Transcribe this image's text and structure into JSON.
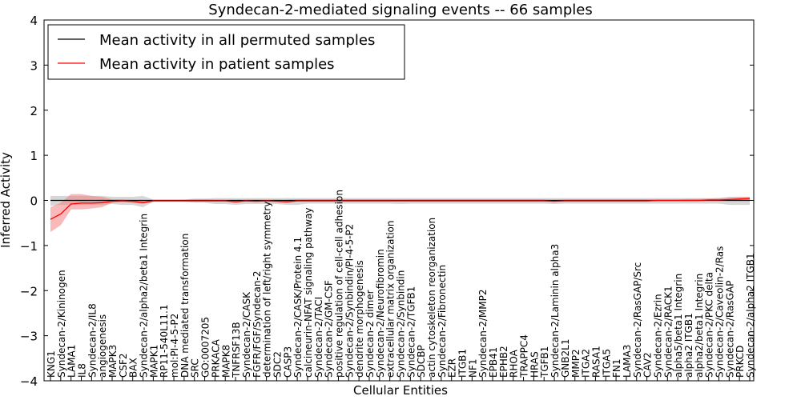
{
  "chart_data": {
    "type": "line",
    "title": "Syndecan-2-mediated signaling events -- 66 samples",
    "xlabel": "Cellular Entities",
    "ylabel": "Inferred Activity",
    "ylim": [
      -4,
      4
    ],
    "yticks": [
      -4,
      -3,
      -2,
      -1,
      0,
      1,
      2,
      3,
      4
    ],
    "ytick_labels": [
      "−4",
      "−3",
      "−2",
      "−1",
      "0",
      "1",
      "2",
      "3",
      "4"
    ],
    "legend_position": "top-left",
    "categories": [
      "KNG1",
      "Syndecan-2/Kininogen",
      "LAMA1",
      "IL8",
      "Syndecan-2/IL8",
      "angiogenesis",
      "MAPK3",
      "CSF2",
      "BAX",
      "Syndecan-2/alpha2/beta1 Integrin",
      "MAPK1",
      "RP11-540L11.1",
      "mol:PI-4-5-P2",
      "DNA mediated transformation",
      "SRC",
      "GO:0007205",
      "PRKACA",
      "MAPK8",
      "TNFRSF13B",
      "Syndecan-2/CASK",
      "FGFR/FGF/Syndecan-2",
      "determination of left/right symmetry",
      "SDC2",
      "CASP3",
      "Syndecan-2/CASK/Protein 4.1",
      "calcineurin-NFAT signaling pathway",
      "Syndecan-2/TACI",
      "Syndecan-2/GM-CSF",
      "positive regulation of cell-cell adhesion",
      "Syndecan-2/Synbindin/PI-4-5-P2",
      "dendrite morphogenesis",
      "Syndecan-2 dimer",
      "Syndecan-2/Neurofibromin",
      "extracellular matrix organization",
      "Syndecan-2/Synbindin",
      "Syndecan-2/TGFB1",
      "SDCBP",
      "actin cytoskeleton reorganization",
      "Syndecan-2/Fibronectin",
      "EZR",
      "ITGB1",
      "NF1",
      "Syndecan-2/MMP2",
      "EPB41",
      "EPHB2",
      "RHOA",
      "TRAPPC4",
      "HRAS",
      "TGFB1",
      "Syndecan-2/Laminin alpha3",
      "GNB2L1",
      "MMP2",
      "ITGA2",
      "RASA1",
      "ITGA5",
      "FN1",
      "LAMA3",
      "Syndecan-2/RasGAP/Src",
      "CAV2",
      "Syndecan-2/Ezrin",
      "Syndecan-2/RACK1",
      "alpha5/beta1 Integrin",
      "alpha2 ITGB1",
      "alpha2/beta1 Integrin",
      "Syndecan-2/PKC delta",
      "Syndecan-2/Caveolin-2/Ras",
      "Syndecan-2/RasGAP",
      "PRKCD",
      "Syndecan-2/alpha2 ITGB1"
    ],
    "series": [
      {
        "name": "Mean activity in all permuted samples",
        "color": "#000000",
        "values": [
          0.0,
          0.0,
          0.0,
          0.0,
          0.0,
          0.0,
          0.0,
          0.0,
          0.0,
          0.0,
          0.0,
          0.0,
          0.0,
          0.0,
          0.0,
          0.0,
          0.0,
          0.0,
          0.0,
          0.0,
          0.0,
          0.0,
          0.0,
          0.0,
          0.0,
          0.0,
          0.0,
          0.0,
          0.0,
          0.0,
          0.0,
          0.0,
          0.0,
          0.0,
          0.0,
          0.0,
          0.0,
          0.0,
          0.0,
          0.0,
          0.0,
          0.0,
          0.0,
          0.0,
          0.0,
          0.0,
          0.0,
          0.0,
          0.0,
          0.0,
          0.0,
          0.0,
          0.0,
          0.0,
          0.0,
          0.0,
          0.0,
          0.0,
          0.0,
          0.0,
          0.0,
          0.0,
          0.0,
          0.0,
          0.0,
          0.0,
          0.0,
          0.0,
          0.0
        ],
        "band_low": [
          -0.12,
          -0.1,
          -0.1,
          -0.1,
          -0.1,
          -0.1,
          -0.08,
          -0.1,
          -0.1,
          -0.15,
          -0.03,
          -0.03,
          -0.03,
          -0.03,
          -0.05,
          -0.05,
          -0.08,
          -0.08,
          -0.1,
          -0.08,
          -0.08,
          -0.08,
          -0.08,
          -0.1,
          -0.1,
          -0.07,
          -0.07,
          -0.07,
          -0.07,
          -0.07,
          -0.07,
          -0.07,
          -0.07,
          -0.07,
          -0.08,
          -0.07,
          -0.07,
          -0.07,
          -0.07,
          -0.07,
          -0.07,
          -0.07,
          -0.07,
          -0.07,
          -0.07,
          -0.07,
          -0.07,
          -0.07,
          -0.07,
          -0.08,
          -0.07,
          -0.07,
          -0.07,
          -0.07,
          -0.07,
          -0.07,
          -0.07,
          -0.07,
          -0.07,
          -0.07,
          -0.07,
          -0.07,
          -0.07,
          -0.07,
          -0.07,
          -0.07,
          -0.1,
          -0.1,
          -0.1
        ],
        "band_high": [
          0.1,
          0.1,
          0.1,
          0.1,
          0.1,
          0.1,
          0.08,
          0.08,
          0.08,
          0.1,
          0.02,
          0.02,
          0.02,
          0.02,
          0.04,
          0.04,
          0.05,
          0.05,
          0.05,
          0.05,
          0.05,
          0.05,
          0.05,
          0.05,
          0.05,
          0.05,
          0.05,
          0.05,
          0.05,
          0.05,
          0.05,
          0.05,
          0.05,
          0.05,
          0.05,
          0.05,
          0.05,
          0.05,
          0.05,
          0.05,
          0.05,
          0.05,
          0.05,
          0.05,
          0.05,
          0.05,
          0.05,
          0.05,
          0.05,
          0.05,
          0.05,
          0.05,
          0.05,
          0.05,
          0.05,
          0.05,
          0.05,
          0.05,
          0.05,
          0.05,
          0.05,
          0.05,
          0.05,
          0.05,
          0.05,
          0.05,
          0.08,
          0.08,
          0.08
        ]
      },
      {
        "name": "Mean activity in patient samples",
        "color": "#ff0000",
        "band_color": "#f08080",
        "values": [
          -0.42,
          -0.3,
          -0.08,
          -0.06,
          -0.06,
          -0.05,
          -0.02,
          -0.01,
          -0.02,
          -0.05,
          -0.01,
          -0.01,
          -0.01,
          -0.01,
          -0.01,
          -0.01,
          -0.01,
          -0.01,
          -0.03,
          -0.01,
          -0.02,
          -0.01,
          -0.02,
          -0.03,
          -0.01,
          -0.01,
          -0.01,
          -0.01,
          -0.01,
          -0.01,
          -0.01,
          -0.01,
          -0.01,
          -0.01,
          -0.01,
          -0.01,
          -0.01,
          -0.01,
          -0.01,
          -0.01,
          -0.01,
          -0.01,
          -0.01,
          -0.01,
          -0.01,
          -0.01,
          -0.01,
          -0.01,
          -0.01,
          -0.02,
          -0.01,
          -0.01,
          -0.01,
          -0.01,
          -0.01,
          -0.01,
          -0.01,
          -0.01,
          -0.01,
          0.0,
          0.0,
          0.0,
          0.0,
          0.0,
          0.01,
          0.01,
          0.02,
          0.03,
          0.04
        ],
        "band_low": [
          -0.7,
          -0.55,
          -0.2,
          -0.2,
          -0.18,
          -0.15,
          -0.05,
          -0.04,
          -0.06,
          -0.08,
          -0.03,
          -0.03,
          -0.03,
          -0.03,
          -0.03,
          -0.03,
          -0.03,
          -0.03,
          -0.05,
          -0.03,
          -0.04,
          -0.03,
          -0.04,
          -0.05,
          -0.03,
          -0.03,
          -0.03,
          -0.03,
          -0.03,
          -0.03,
          -0.03,
          -0.03,
          -0.03,
          -0.03,
          -0.03,
          -0.03,
          -0.03,
          -0.03,
          -0.03,
          -0.03,
          -0.03,
          -0.03,
          -0.03,
          -0.03,
          -0.03,
          -0.03,
          -0.03,
          -0.03,
          -0.03,
          -0.04,
          -0.03,
          -0.03,
          -0.03,
          -0.03,
          -0.03,
          -0.03,
          -0.03,
          -0.03,
          -0.03,
          -0.02,
          -0.02,
          -0.02,
          -0.02,
          -0.02,
          -0.01,
          -0.01,
          -0.01,
          -0.01,
          -0.01
        ],
        "band_high": [
          -0.15,
          -0.05,
          0.14,
          0.14,
          0.1,
          0.08,
          0.02,
          0.02,
          0.01,
          0.0,
          0.01,
          0.01,
          0.01,
          0.01,
          0.02,
          0.02,
          0.01,
          0.01,
          0.01,
          0.01,
          0.01,
          0.01,
          0.01,
          0.01,
          0.02,
          0.02,
          0.02,
          0.02,
          0.02,
          0.02,
          0.02,
          0.02,
          0.02,
          0.02,
          0.02,
          0.02,
          0.02,
          0.02,
          0.02,
          0.02,
          0.02,
          0.02,
          0.02,
          0.02,
          0.02,
          0.02,
          0.02,
          0.02,
          0.02,
          0.01,
          0.02,
          0.02,
          0.02,
          0.02,
          0.02,
          0.02,
          0.02,
          0.02,
          0.02,
          0.02,
          0.02,
          0.02,
          0.03,
          0.03,
          0.04,
          0.05,
          0.06,
          0.07,
          0.08
        ]
      }
    ]
  }
}
